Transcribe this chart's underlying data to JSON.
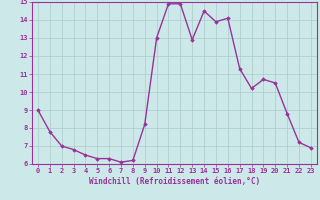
{
  "x": [
    0,
    1,
    2,
    3,
    4,
    5,
    6,
    7,
    8,
    9,
    10,
    11,
    12,
    13,
    14,
    15,
    16,
    17,
    18,
    19,
    20,
    21,
    22,
    23
  ],
  "y": [
    9.0,
    7.8,
    7.0,
    6.8,
    6.5,
    6.3,
    6.3,
    6.1,
    6.2,
    8.2,
    13.0,
    14.9,
    14.9,
    12.9,
    14.5,
    13.9,
    14.1,
    11.3,
    10.2,
    10.7,
    10.5,
    8.8,
    7.2,
    6.9
  ],
  "ylim": [
    6,
    15
  ],
  "xlim": [
    -0.5,
    23.5
  ],
  "yticks": [
    6,
    7,
    8,
    9,
    10,
    11,
    12,
    13,
    14,
    15
  ],
  "xticks": [
    0,
    1,
    2,
    3,
    4,
    5,
    6,
    7,
    8,
    9,
    10,
    11,
    12,
    13,
    14,
    15,
    16,
    17,
    18,
    19,
    20,
    21,
    22,
    23
  ],
  "xlabel": "Windchill (Refroidissement éolien,°C)",
  "line_color": "#993399",
  "marker": "D",
  "marker_size": 1.8,
  "bg_color": "#cce8e8",
  "grid_color": "#aacccc",
  "tick_label_color": "#993399",
  "xlabel_color": "#993399",
  "line_width": 1.0,
  "spine_color": "#993399",
  "tick_fontsize": 5.0,
  "xlabel_fontsize": 5.5
}
